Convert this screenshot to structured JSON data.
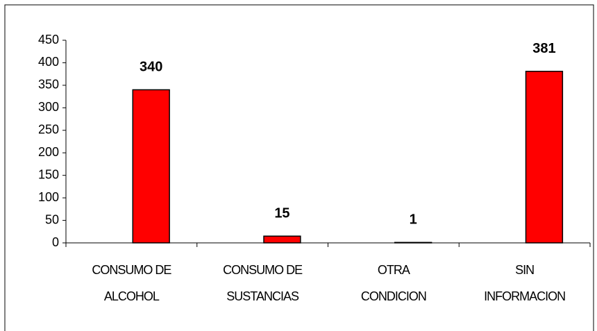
{
  "chart_data": {
    "type": "bar",
    "categories": [
      "CONSUMO DE ALCOHOL",
      "CONSUMO DE SUSTANCIAS",
      "OTRA CONDICION",
      "SIN INFORMACION"
    ],
    "values": [
      340,
      15,
      1,
      381
    ],
    "color": "#ff0000",
    "ylim": [
      0,
      450
    ],
    "yticks": [
      0,
      50,
      100,
      150,
      200,
      250,
      300,
      350,
      400,
      450
    ],
    "grid": false
  }
}
